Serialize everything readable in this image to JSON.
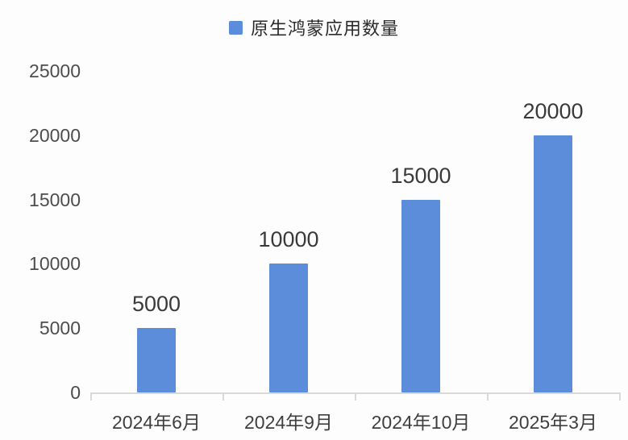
{
  "chart_data": {
    "type": "bar",
    "title": "",
    "legend": {
      "label": "原生鸿蒙应用数量",
      "position": "top-center"
    },
    "categories": [
      "2024年6月",
      "2024年9月",
      "2024年10月",
      "2025年3月"
    ],
    "values": [
      5000,
      10000,
      15000,
      20000
    ],
    "data_labels": [
      "5000",
      "10000",
      "15000",
      "20000"
    ],
    "xlabel": "",
    "ylabel": "",
    "ylim": [
      0,
      25000
    ],
    "ytick_interval": 5000,
    "yticks": [
      0,
      5000,
      10000,
      15000,
      20000,
      25000
    ],
    "ytick_labels": [
      "0",
      "5000",
      "10000",
      "15000",
      "20000",
      "25000"
    ],
    "grid": false,
    "colors": {
      "bar": "#5b8dda",
      "axis_line": "#d9d9d9",
      "value_label_text": "#3a3a3a",
      "axis_label_text": "#4d4d4d",
      "legend_text": "#2b2b2b",
      "background": "#fdfdfd"
    }
  }
}
